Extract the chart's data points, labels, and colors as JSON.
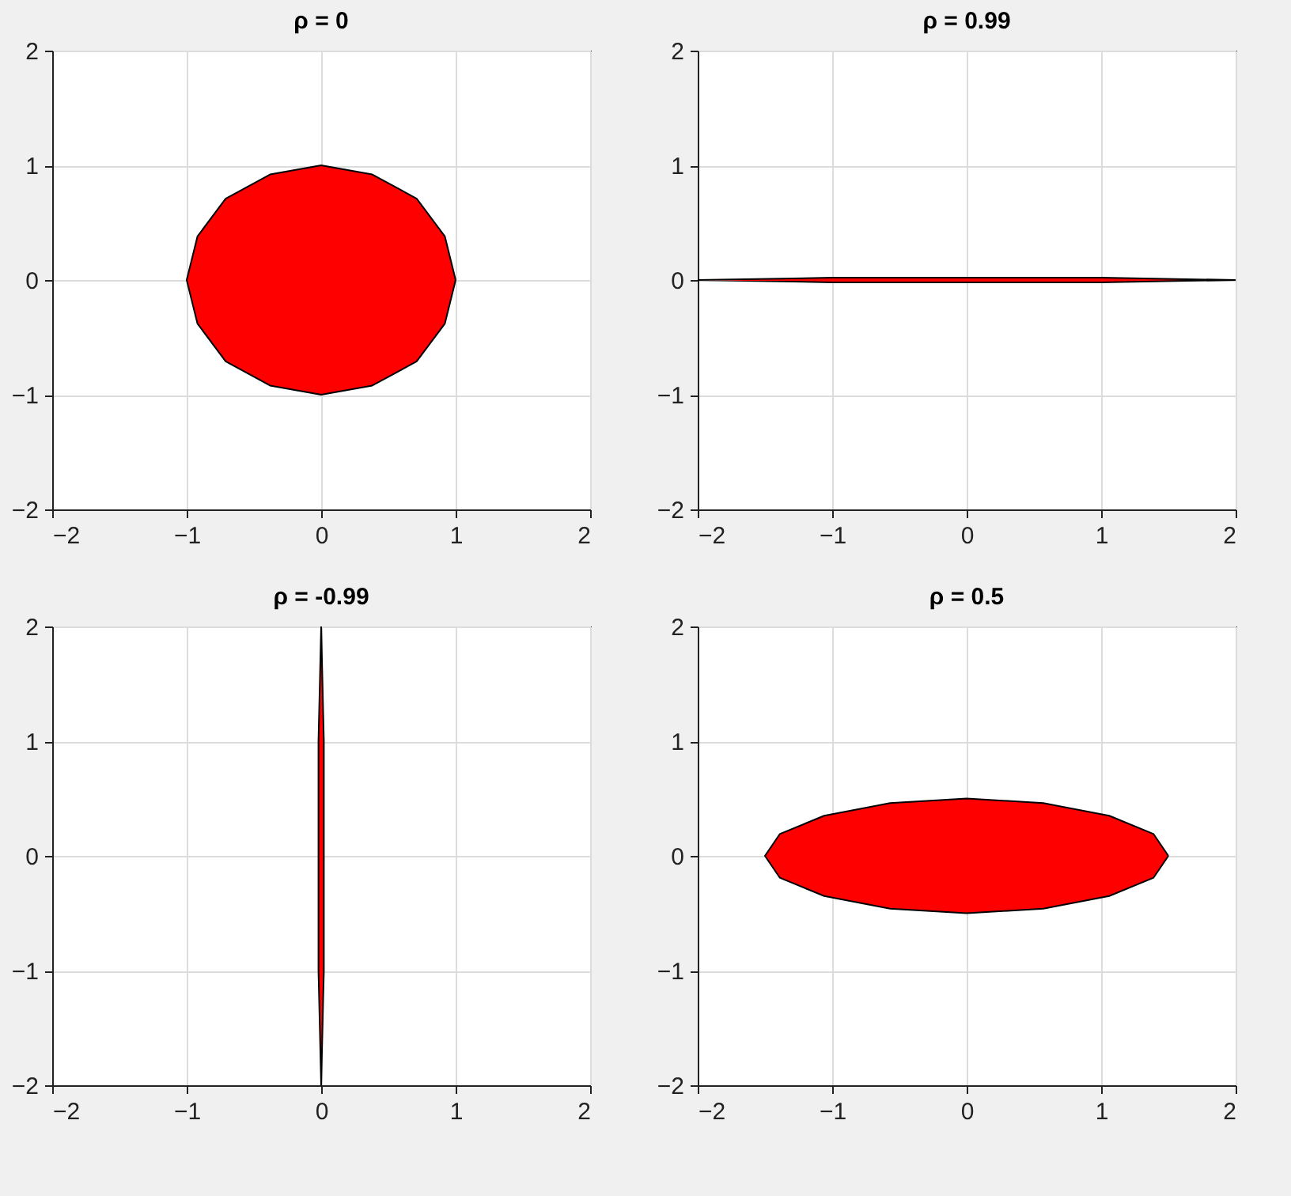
{
  "chart_data": [
    {
      "type": "area",
      "title": "ρ = 0",
      "xlim": [
        -2,
        2
      ],
      "ylim": [
        -2,
        2
      ],
      "xticks": [
        -2,
        -1,
        0,
        1,
        2
      ],
      "yticks": [
        -2,
        -1,
        0,
        1,
        2
      ],
      "grid": true,
      "series": [
        {
          "color": "#ff0000",
          "x": [
            1,
            0.92,
            0.71,
            0.38,
            0,
            -0.38,
            -0.71,
            -0.92,
            -1,
            -0.92,
            -0.71,
            -0.38,
            0,
            0.38,
            0.71,
            0.92,
            1
          ],
          "values": [
            0,
            0.38,
            0.71,
            0.92,
            1,
            0.92,
            0.71,
            0.38,
            0,
            -0.38,
            -0.71,
            -0.92,
            -1,
            -0.92,
            -0.71,
            -0.38,
            0
          ]
        }
      ]
    },
    {
      "type": "area",
      "title": "ρ = 0.99",
      "xlim": [
        -2,
        2
      ],
      "ylim": [
        -2,
        2
      ],
      "xticks": [
        -2,
        -1,
        0,
        1,
        2
      ],
      "yticks": [
        -2,
        -1,
        0,
        1,
        2
      ],
      "grid": true,
      "series": [
        {
          "color": "#ff0000",
          "x": [
            -2,
            -1,
            0,
            1,
            2,
            1,
            0,
            -1,
            -2
          ],
          "values": [
            0,
            0.02,
            0.02,
            0.02,
            0,
            -0.02,
            -0.02,
            -0.02,
            0
          ]
        }
      ]
    },
    {
      "type": "area",
      "title": "ρ = -0.99",
      "xlim": [
        -2,
        2
      ],
      "ylim": [
        -2,
        2
      ],
      "xticks": [
        -2,
        -1,
        0,
        1,
        2
      ],
      "yticks": [
        -2,
        -1,
        0,
        1,
        2
      ],
      "grid": true,
      "series": [
        {
          "color": "#ff0000",
          "x": [
            0,
            0.02,
            0.02,
            0.02,
            0,
            -0.02,
            -0.02,
            -0.02,
            0
          ],
          "values": [
            -2,
            -1,
            0,
            1,
            2,
            1,
            0,
            -1,
            -2
          ]
        }
      ]
    },
    {
      "type": "area",
      "title": "ρ = 0.5",
      "xlim": [
        -2,
        2
      ],
      "ylim": [
        -2,
        2
      ],
      "xticks": [
        -2,
        -1,
        0,
        1,
        2
      ],
      "yticks": [
        -2,
        -1,
        0,
        1,
        2
      ],
      "grid": true,
      "series": [
        {
          "color": "#ff0000",
          "x": [
            1.5,
            1.39,
            1.06,
            0.57,
            0,
            -0.57,
            -1.06,
            -1.39,
            -1.5,
            -1.39,
            -1.06,
            -0.57,
            0,
            0.57,
            1.06,
            1.39,
            1.5
          ],
          "values": [
            0,
            0.19,
            0.35,
            0.46,
            0.5,
            0.46,
            0.35,
            0.19,
            0,
            -0.19,
            -0.35,
            -0.46,
            -0.5,
            -0.46,
            -0.35,
            -0.19,
            0
          ]
        }
      ]
    }
  ]
}
